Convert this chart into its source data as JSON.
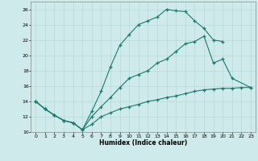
{
  "xlabel": "Humidex (Indice chaleur)",
  "xlim": [
    -0.5,
    23.5
  ],
  "ylim": [
    10,
    27
  ],
  "xticks": [
    0,
    1,
    2,
    3,
    4,
    5,
    6,
    7,
    8,
    9,
    10,
    11,
    12,
    13,
    14,
    15,
    16,
    17,
    18,
    19,
    20,
    21,
    22,
    23
  ],
  "yticks": [
    10,
    12,
    14,
    16,
    18,
    20,
    22,
    24,
    26
  ],
  "bg_color": "#ceeaea",
  "grid_color": "#b8d8d8",
  "line_color": "#1a7a6e",
  "line1_x": [
    0,
    1,
    2,
    3,
    4,
    5,
    6,
    7,
    8,
    9,
    10,
    11,
    12,
    13,
    14,
    15,
    16,
    17,
    18,
    19,
    20
  ],
  "line1_y": [
    14,
    13,
    12.2,
    11.5,
    11.2,
    10.3,
    12.7,
    15.3,
    18.5,
    21.3,
    22.7,
    24,
    24.5,
    25,
    26,
    25.8,
    25.7,
    24.5,
    23.5,
    22,
    21.8
  ],
  "line2_x": [
    0,
    1,
    2,
    3,
    4,
    5,
    6,
    7,
    8,
    9,
    10,
    11,
    12,
    13,
    14,
    15,
    16,
    17,
    18,
    19,
    20,
    21,
    23
  ],
  "line2_y": [
    14,
    13,
    12.2,
    11.5,
    11.2,
    10.3,
    12,
    13.3,
    14.5,
    15.8,
    17,
    17.5,
    18,
    19,
    19.5,
    20.5,
    21.5,
    21.8,
    22.5,
    19,
    19.5,
    17,
    15.8
  ],
  "line3_x": [
    0,
    1,
    2,
    3,
    4,
    5,
    6,
    7,
    8,
    9,
    10,
    11,
    12,
    13,
    14,
    15,
    16,
    17,
    18,
    19,
    20,
    21,
    22,
    23
  ],
  "line3_y": [
    14,
    13,
    12.2,
    11.5,
    11.2,
    10.3,
    11,
    12,
    12.5,
    13,
    13.3,
    13.6,
    14,
    14.2,
    14.5,
    14.7,
    15,
    15.3,
    15.5,
    15.6,
    15.7,
    15.7,
    15.8,
    15.8
  ]
}
